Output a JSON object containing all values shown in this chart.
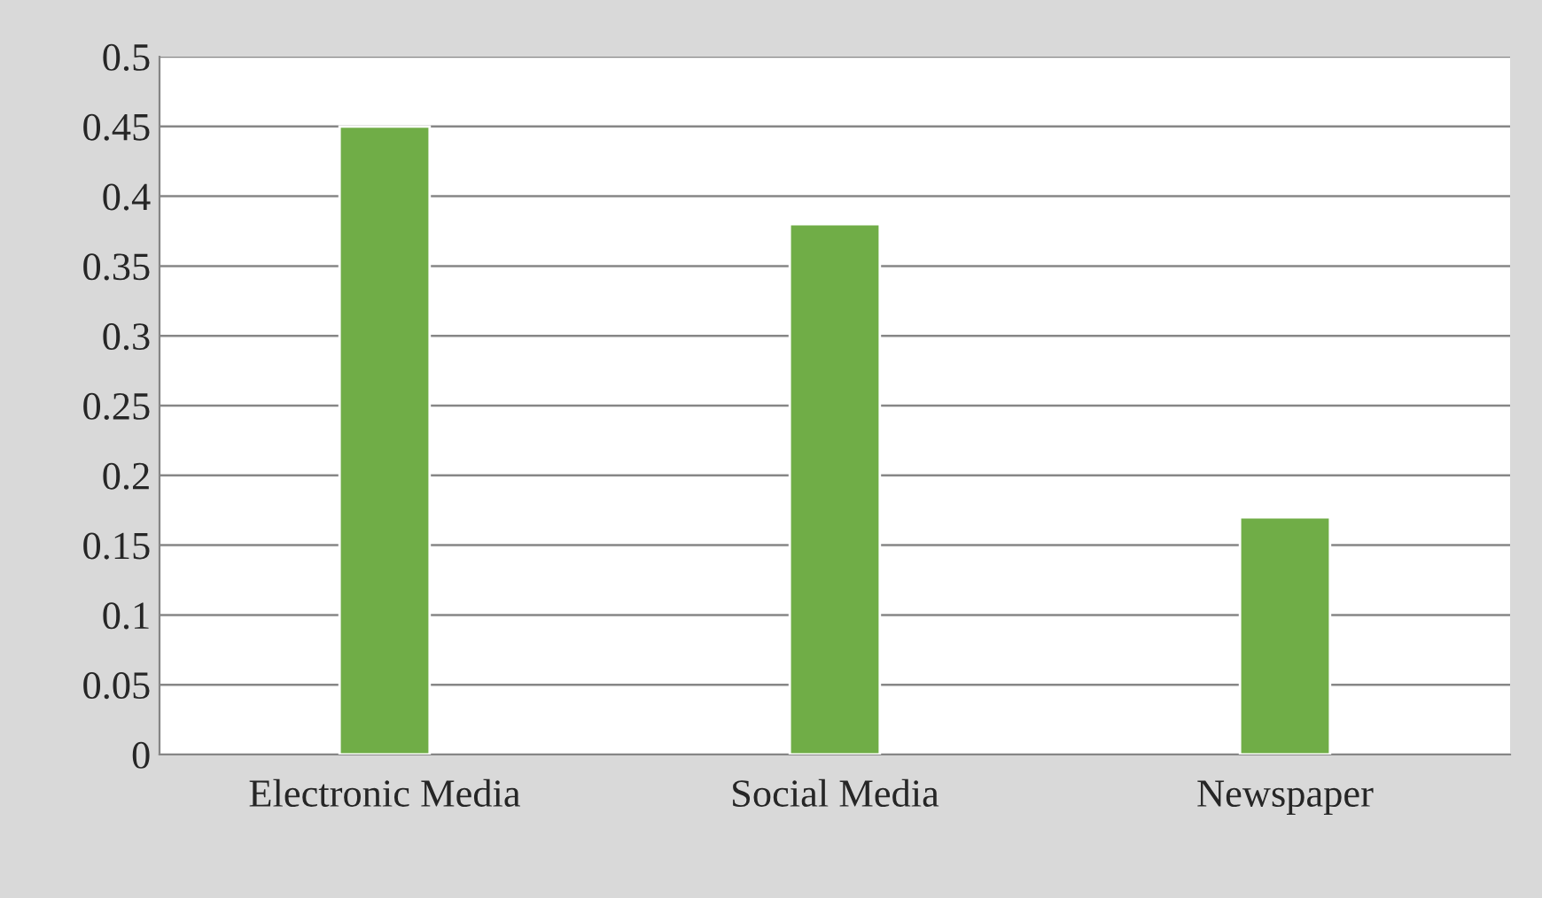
{
  "chart_data": {
    "type": "bar",
    "categories": [
      "Electronic Media",
      "Social Media",
      "Newspaper"
    ],
    "values": [
      0.45,
      0.38,
      0.17
    ],
    "color": "#70ad47",
    "ylim": [
      0,
      0.5
    ],
    "yticks": [
      0,
      0.05,
      0.1,
      0.15,
      0.2,
      0.25,
      0.3,
      0.35,
      0.4,
      0.45,
      0.5
    ],
    "grid": "y"
  }
}
